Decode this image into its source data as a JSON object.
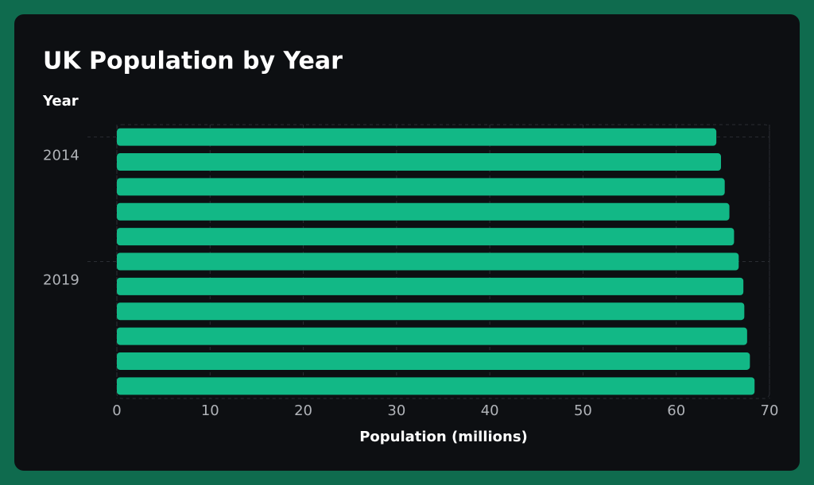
{
  "chart_data": {
    "type": "bar",
    "orientation": "horizontal",
    "title": "UK Population by Year",
    "y_label": "Year",
    "x_label": "Population (millions)",
    "categories": [
      "2014",
      null,
      null,
      null,
      null,
      "2019",
      null,
      null,
      null,
      null,
      null
    ],
    "values": [
      64.3,
      64.8,
      65.2,
      65.7,
      66.2,
      66.7,
      67.2,
      67.3,
      67.6,
      67.9,
      68.4
    ],
    "color": "#12b886",
    "xlim": [
      0,
      70
    ],
    "xticks": [
      0,
      10,
      20,
      30,
      40,
      50,
      60,
      70
    ],
    "grid": true
  }
}
